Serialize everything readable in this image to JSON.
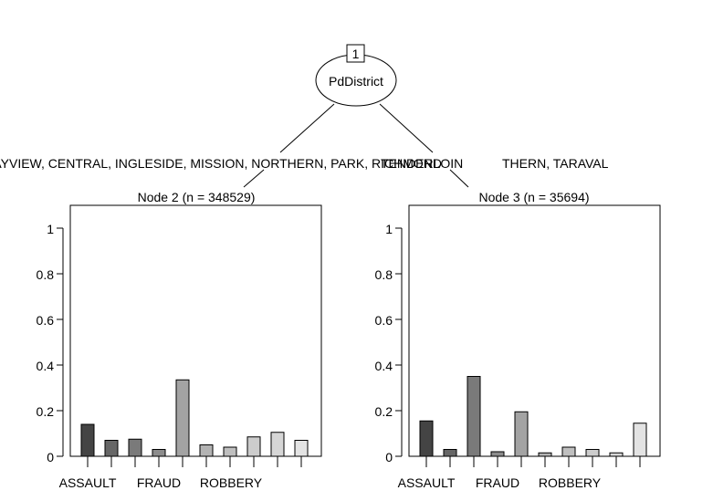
{
  "tree": {
    "root": {
      "id": "1",
      "variable": "PdDistrict"
    },
    "split_left_label": "BAYVIEW, CENTRAL, INGLESIDE, MISSION, NORTHERN, PARK, RICHMOND",
    "split_right_label": "TENDERLOIN",
    "split_right_label_tail": "THERN, TARAVAL"
  },
  "chart_data": [
    {
      "type": "bar",
      "title": "Node 2 (n = 348529)",
      "categories": [
        "ASSAULT",
        "",
        "FRAUD",
        "",
        "ROBBERY",
        "",
        "",
        "",
        "",
        ""
      ],
      "tick_labels": [
        "ASSAULT",
        "FRAUD",
        "ROBBERY"
      ],
      "values": [
        0.14,
        0.07,
        0.075,
        0.03,
        0.335,
        0.05,
        0.04,
        0.085,
        0.105,
        0.07
      ],
      "ylim": [
        0,
        1
      ],
      "yticks": [
        "0",
        "0.2",
        "0.4",
        "0.6",
        "0.8",
        "1"
      ],
      "colors": [
        "#444444",
        "#666666",
        "#7a7a7a",
        "#8c8c8c",
        "#a3a3a3",
        "#b3b3b3",
        "#bfbfbf",
        "#cccccc",
        "#d6d6d6",
        "#e3e3e3"
      ]
    },
    {
      "type": "bar",
      "title": "Node 3 (n = 35694)",
      "categories": [
        "ASSAULT",
        "",
        "FRAUD",
        "",
        "ROBBERY",
        "",
        "",
        "",
        "",
        ""
      ],
      "tick_labels": [
        "ASSAULT",
        "FRAUD",
        "ROBBERY"
      ],
      "values": [
        0.155,
        0.03,
        0.35,
        0.02,
        0.195,
        0.015,
        0.04,
        0.03,
        0.015,
        0.145
      ],
      "ylim": [
        0,
        1
      ],
      "yticks": [
        "0",
        "0.2",
        "0.4",
        "0.6",
        "0.8",
        "1"
      ],
      "colors": [
        "#444444",
        "#666666",
        "#7a7a7a",
        "#8c8c8c",
        "#a3a3a3",
        "#b3b3b3",
        "#bfbfbf",
        "#cccccc",
        "#d6d6d6",
        "#e3e3e3"
      ]
    }
  ]
}
